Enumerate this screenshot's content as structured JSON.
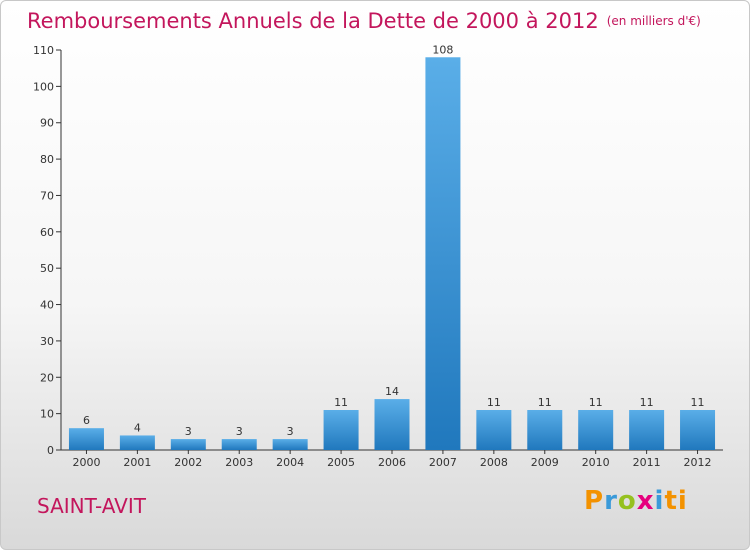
{
  "title": "Remboursements Annuels de la Dette de 2000 à 2012",
  "unit": "(en milliers d'€)",
  "city": "SAINT-AVIT",
  "logo": {
    "letters": [
      "P",
      "r",
      "o",
      "x",
      "i",
      "ti"
    ]
  },
  "colors": {
    "title": "#c3165c",
    "bar_light": "#5aaee8",
    "bar_dark": "#2078bd",
    "axis": "#333333"
  },
  "chart_data": {
    "type": "bar",
    "title": "Remboursements Annuels de la Dette de 2000 à 2012",
    "xlabel": "",
    "ylabel": "",
    "categories": [
      "2000",
      "2001",
      "2002",
      "2003",
      "2004",
      "2005",
      "2006",
      "2007",
      "2008",
      "2009",
      "2010",
      "2011",
      "2012"
    ],
    "values": [
      6,
      4,
      3,
      3,
      3,
      11,
      14,
      108,
      11,
      11,
      11,
      11,
      11
    ],
    "ylim": [
      0,
      110
    ],
    "yticks": [
      0,
      10,
      20,
      30,
      40,
      50,
      60,
      70,
      80,
      90,
      100,
      110
    ],
    "grid": false,
    "legend": "none"
  }
}
